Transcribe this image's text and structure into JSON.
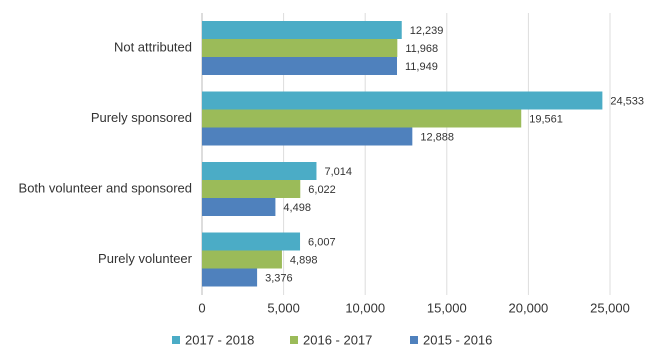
{
  "chart_data": {
    "type": "barh",
    "categories": [
      "Not attributed",
      "Purely sponsored",
      "Both volunteer and sponsored",
      "Purely volunteer"
    ],
    "series": [
      {
        "name": "2017 - 2018",
        "color": "#4bacc6",
        "values": [
          12239,
          24533,
          7014,
          6007
        ],
        "value_labels": [
          "12,239",
          "24,533",
          "7,014",
          "6,007"
        ]
      },
      {
        "name": "2016 - 2017",
        "color": "#9bbb59",
        "values": [
          11968,
          19561,
          6022,
          4898
        ],
        "value_labels": [
          "11,968",
          "19,561",
          "6,022",
          "4,898"
        ]
      },
      {
        "name": "2015 - 2016",
        "color": "#4f81bd",
        "values": [
          11949,
          12888,
          4498,
          3376
        ],
        "value_labels": [
          "11,949",
          "12,888",
          "4,498",
          "3,376"
        ]
      }
    ],
    "xlim": [
      0,
      25000
    ],
    "xticks": [
      0,
      {
        "value": 5000,
        "label": "5,000"
      },
      {
        "value": 10000,
        "label": "10,000"
      },
      {
        "value": 15000,
        "label": "15,000"
      },
      {
        "value": 20000,
        "label": "20,000"
      },
      {
        "value": 25000,
        "label": "25,000"
      }
    ],
    "grid": true,
    "legend": "bottom"
  }
}
